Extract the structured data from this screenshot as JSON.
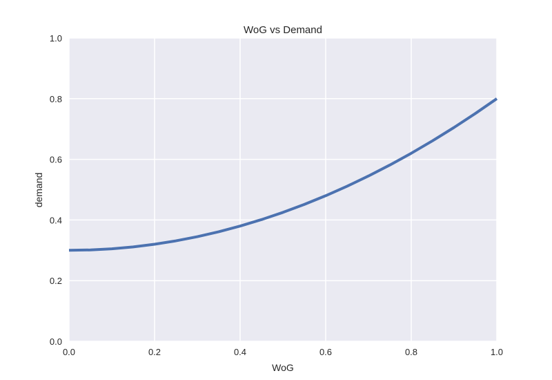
{
  "chart_data": {
    "type": "line",
    "title": "WoG vs Demand",
    "xlabel": "WoG",
    "ylabel": "demand",
    "xlim": [
      0.0,
      1.0
    ],
    "ylim": [
      0.0,
      1.0
    ],
    "x_ticks": [
      "0.0",
      "0.2",
      "0.4",
      "0.6",
      "0.8",
      "1.0"
    ],
    "y_ticks": [
      "0.0",
      "0.2",
      "0.4",
      "0.6",
      "0.8",
      "1.0"
    ],
    "grid": true,
    "series": [
      {
        "color": "#4c72b0",
        "x": [
          0.0,
          0.05,
          0.1,
          0.15,
          0.2,
          0.25,
          0.3,
          0.35,
          0.4,
          0.45,
          0.5,
          0.55,
          0.6,
          0.65,
          0.7,
          0.75,
          0.8,
          0.85,
          0.9,
          0.95,
          1.0
        ],
        "y": [
          0.3,
          0.30125,
          0.305,
          0.31125,
          0.32,
          0.33125,
          0.345,
          0.36125,
          0.38,
          0.40125,
          0.425,
          0.45125,
          0.48,
          0.51125,
          0.545,
          0.58125,
          0.62,
          0.66125,
          0.705,
          0.75125,
          0.8
        ]
      }
    ],
    "colors": {
      "plot_background": "#eaeaf2",
      "grid": "#ffffff",
      "line": "#4c72b0"
    }
  }
}
